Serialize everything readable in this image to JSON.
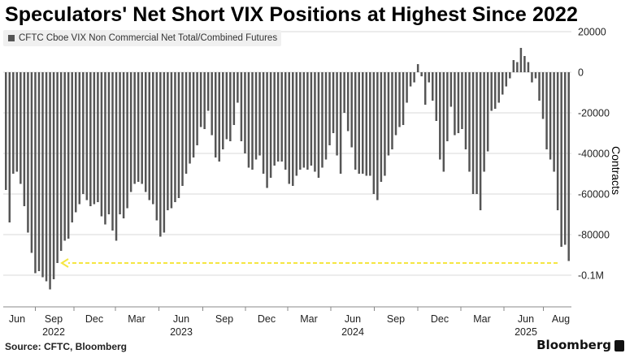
{
  "title": "Speculators' Net Short VIX Positions at Highest Since 2022",
  "source": "Source: CFTC, Bloomberg",
  "brand": "Bloomberg",
  "colors": {
    "bar": "#555555",
    "arrow": "#f5e642",
    "grid": "#d9d9d9",
    "legend_bg": "#f0f0f0"
  },
  "chart_data": {
    "type": "bar",
    "legend": "CFTC Cboe VIX Non Commercial Net Total/Combined Futures",
    "legend_position": "top-left",
    "ylabel": "Contracts",
    "ylim": [
      -110000,
      20000
    ],
    "grid": true,
    "y_axis_side": "right",
    "y_ticks": [
      {
        "value": 20000,
        "label": "20000"
      },
      {
        "value": 0,
        "label": "0"
      },
      {
        "value": -20000,
        "label": "-20000"
      },
      {
        "value": -40000,
        "label": "-40000"
      },
      {
        "value": -60000,
        "label": "-60000"
      },
      {
        "value": -80000,
        "label": "-80000"
      },
      {
        "value": -100000,
        "label": "-0.1M"
      }
    ],
    "x_month_labels": [
      "Jun",
      "Sep",
      "Dec",
      "Mar",
      "Jun",
      "Sep",
      "Dec",
      "Mar",
      "Jun",
      "Sep",
      "Dec",
      "Mar",
      "Jun",
      "Aug"
    ],
    "x_year_labels": [
      {
        "label": "2022",
        "under_month_index": 1
      },
      {
        "label": "2023",
        "under_month_index": 4
      },
      {
        "label": "2024",
        "under_month_index": 8
      },
      {
        "label": "2025",
        "under_month_index": 12
      }
    ],
    "annotation": {
      "type": "dashed-arrow",
      "value": -94000,
      "color": "#f5e642"
    },
    "values": [
      -58000,
      -74000,
      -50000,
      -49000,
      -55000,
      -66000,
      -79000,
      -89000,
      -99000,
      -98000,
      -101000,
      -103000,
      -107000,
      -102000,
      -94000,
      -88000,
      -83000,
      -82000,
      -74000,
      -69000,
      -65000,
      -60000,
      -63000,
      -66000,
      -65000,
      -64000,
      -71000,
      -75000,
      -70000,
      -78000,
      -83000,
      -70000,
      -72000,
      -67000,
      -59000,
      -55000,
      -54000,
      -55000,
      -59000,
      -63000,
      -65000,
      -73000,
      -81000,
      -79000,
      -68000,
      -67000,
      -64000,
      -62000,
      -56000,
      -50000,
      -45000,
      -42000,
      -36000,
      -27000,
      -28000,
      -19000,
      -31000,
      -42000,
      -44000,
      -38000,
      -33000,
      -34000,
      -26000,
      -15000,
      -34000,
      -40000,
      -47000,
      -48000,
      -43000,
      -41000,
      -50000,
      -57000,
      -52000,
      -46000,
      -44000,
      -44000,
      -48000,
      -55000,
      -56000,
      -51000,
      -48000,
      -47000,
      -48000,
      -46000,
      -49000,
      -52000,
      -47000,
      -43000,
      -36000,
      -30000,
      -41000,
      -50000,
      -20000,
      -29000,
      -37000,
      -48000,
      -50000,
      -50000,
      -51000,
      -51000,
      -60000,
      -63000,
      -54000,
      -51000,
      -41000,
      -38000,
      -31000,
      -27000,
      -26000,
      -15000,
      -7000,
      -5000,
      4000,
      -2000,
      -16000,
      -5000,
      -14000,
      -24000,
      -43000,
      -49000,
      -34000,
      -17000,
      -31000,
      -30000,
      -28000,
      -38000,
      -49000,
      -60000,
      -60000,
      -68000,
      -49000,
      -39000,
      -19000,
      -18000,
      -15000,
      -11000,
      -7000,
      -3000,
      6000,
      5000,
      12000,
      8000,
      5000,
      -5000,
      -3000,
      -14000,
      -23000,
      -38000,
      -43000,
      -49000,
      -68000,
      -86000,
      -85000,
      -93000
    ]
  }
}
